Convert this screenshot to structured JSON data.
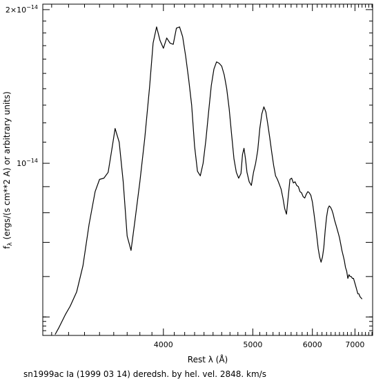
{
  "chart_data": {
    "type": "line",
    "title": "",
    "caption": "sn1999ac Ia (1999 03 14) deredsh. by hel. vel.  2848. km/s",
    "xlabel": "Rest λ (Å)",
    "ylabel": "fλ (ergs/(s cm**2 A) or arbitrary units)",
    "ylabel_sub": "λ",
    "ylabel_rest": " (ergs/(s cm**2 A) or arbitrary units)",
    "ylabel_f": "f",
    "x_scale": "reciprocal",
    "y_scale": "log",
    "xlim": [
      3150,
      7520
    ],
    "ylim": [
      4.6e-15,
      2.05e-14
    ],
    "x_ticks_major": [
      4000,
      5000,
      6000,
      7000
    ],
    "x_tick_labels": [
      "4000",
      "5000",
      "6000",
      "7000"
    ],
    "y_tick_labels": [
      {
        "value": 1e-14,
        "mantissa": "10",
        "exponent": "−14"
      },
      {
        "value": 2e-14,
        "mantissa": "2×10",
        "exponent": "−14"
      }
    ],
    "y_ticks_major": [
      5e-15,
      6e-15,
      7e-15,
      8e-15,
      9e-15,
      1e-14,
      2e-14
    ],
    "grid": false,
    "legend": "none",
    "colors": {
      "line": "#000000",
      "axes": "#000000",
      "background": "#ffffff"
    },
    "series": [
      {
        "x": [
          3220,
          3240,
          3280,
          3310,
          3350,
          3390,
          3430,
          3470,
          3500,
          3530,
          3560,
          3590,
          3610,
          3640,
          3670,
          3700,
          3730,
          3760,
          3800,
          3840,
          3880,
          3910,
          3940,
          3970,
          4000,
          4030,
          4060,
          4090,
          4120,
          4150,
          4180,
          4210,
          4240,
          4270,
          4300,
          4330,
          4360,
          4390,
          4420,
          4450,
          4480,
          4510,
          4540,
          4570,
          4600,
          4630,
          4660,
          4690,
          4720,
          4750,
          4780,
          4810,
          4840,
          4860,
          4880,
          4900,
          4920,
          4950,
          4980,
          5010,
          5040,
          5070,
          5100,
          5130,
          5160,
          5190,
          5220,
          5250,
          5280,
          5310,
          5340,
          5370,
          5400,
          5430,
          5460,
          5490,
          5520,
          5550,
          5580,
          5610,
          5640,
          5670,
          5700,
          5730,
          5760,
          5790,
          5820,
          5850,
          5880,
          5910,
          5940,
          5970,
          6000,
          6030,
          6060,
          6090,
          6120,
          6150,
          6180,
          6210,
          6240,
          6270,
          6300,
          6330,
          6360,
          6390,
          6420,
          6450,
          6480,
          6510,
          6540,
          6570,
          6600,
          6630,
          6660,
          6690,
          6720,
          6750,
          6780,
          6810,
          6840,
          6870,
          6900,
          6930,
          6960,
          6990,
          7020,
          7050,
          7080,
          7110,
          7140,
          7170,
          7200
        ],
        "y": [
          4.62e-15,
          4.75e-15,
          5.05e-15,
          5.25e-15,
          5.6e-15,
          6.3e-15,
          7.6e-15,
          8.8e-15,
          9.3e-15,
          9.35e-15,
          9.6e-15,
          1.08e-14,
          1.17e-14,
          1.1e-14,
          9.2e-15,
          7.2e-15,
          6.75e-15,
          7.7e-15,
          9.2e-15,
          1.12e-14,
          1.41e-14,
          1.72e-14,
          1.85e-14,
          1.74e-14,
          1.68e-14,
          1.76e-14,
          1.72e-14,
          1.71e-14,
          1.84e-14,
          1.85e-14,
          1.77e-14,
          1.62e-14,
          1.46e-14,
          1.3e-14,
          1.08e-14,
          9.65e-15,
          9.45e-15,
          1e-14,
          1.11e-14,
          1.26e-14,
          1.42e-14,
          1.53e-14,
          1.58e-14,
          1.57e-14,
          1.55e-14,
          1.49e-14,
          1.4e-14,
          1.28e-14,
          1.14e-14,
          1.02e-14,
          9.6e-15,
          9.35e-15,
          9.55e-15,
          1.04e-14,
          1.07e-14,
          1.02e-14,
          9.6e-15,
          9.2e-15,
          9.05e-15,
          9.6e-15,
          1e-14,
          1.06e-14,
          1.17e-14,
          1.25e-14,
          1.29e-14,
          1.26e-14,
          1.19e-14,
          1.12e-14,
          1.05e-14,
          9.9e-15,
          9.45e-15,
          9.3e-15,
          9.1e-15,
          8.9e-15,
          8.55e-15,
          8.15e-15,
          7.95e-15,
          8.6e-15,
          9.3e-15,
          9.35e-15,
          9.15e-15,
          9.2e-15,
          9.05e-15,
          9e-15,
          8.8e-15,
          8.75e-15,
          8.6e-15,
          8.55e-15,
          8.7e-15,
          8.8e-15,
          8.75e-15,
          8.65e-15,
          8.4e-15,
          8e-15,
          7.6e-15,
          7.2e-15,
          6.8e-15,
          6.55e-15,
          6.4e-15,
          6.55e-15,
          6.85e-15,
          7.4e-15,
          7.85e-15,
          8.15e-15,
          8.25e-15,
          8.2e-15,
          8.1e-15,
          7.95e-15,
          7.75e-15,
          7.6e-15,
          7.45e-15,
          7.3e-15,
          7.15e-15,
          6.95e-15,
          6.75e-15,
          6.6e-15,
          6.45e-15,
          6.25e-15,
          6.15e-15,
          5.95e-15,
          6.05e-15,
          6e-15,
          6e-15,
          5.95e-15,
          5.95e-15,
          5.85e-15,
          5.75e-15,
          5.65e-15,
          5.55e-15,
          5.55e-15,
          5.48e-15,
          5.45e-15,
          5.42e-15
        ]
      }
    ]
  }
}
